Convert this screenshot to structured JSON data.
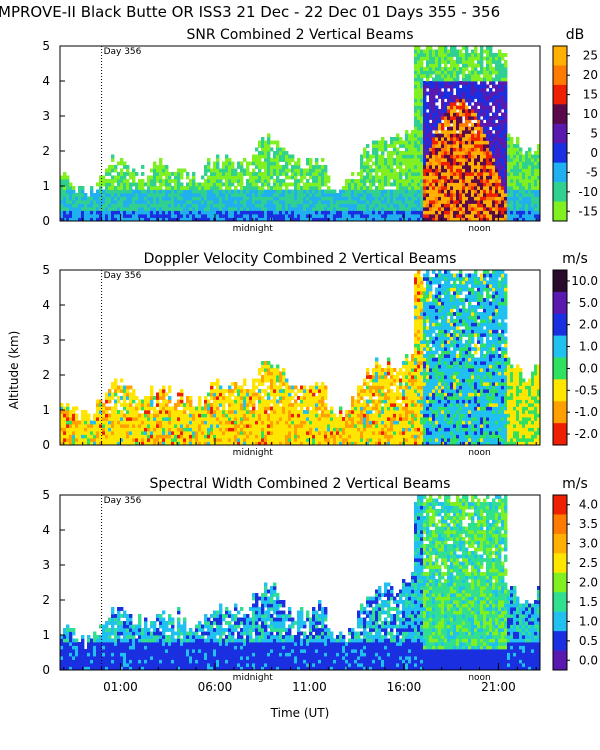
{
  "page": {
    "title": "MPROVE-II  Black Butte OR  ISS3  21 Dec - 22 Dec 01 Days 355 - 356",
    "ylabel": "Altitude (km)",
    "xlabel": "Time (UT)",
    "marker_label": "Day 356",
    "annotations": [
      "midnight",
      "noon"
    ]
  },
  "chart_data": [
    {
      "type": "heatmap",
      "title": "SNR Combined 2 Vertical Beams",
      "unit": "dB",
      "ylim": [
        0,
        5
      ],
      "yticks": [
        "0",
        "1",
        "2",
        "3",
        "4",
        "5"
      ],
      "xticks_hours": [
        1,
        6,
        11,
        16,
        21
      ],
      "colorbar": {
        "labels": [
          "25",
          "20",
          "15",
          "10",
          "5",
          "0",
          "-5",
          "-10",
          "-15"
        ],
        "colors": [
          "#ffb000",
          "#ff7a00",
          "#ee2000",
          "#5a0a4a",
          "#5a1ab0",
          "#1a30e0",
          "#20b0f0",
          "#30d090",
          "#80f020"
        ]
      }
    },
    {
      "type": "heatmap",
      "title": "Doppler Velocity Combined 2 Vertical Beams",
      "unit": "m/s",
      "ylim": [
        0,
        5
      ],
      "yticks": [
        "0",
        "1",
        "2",
        "3",
        "4",
        "5"
      ],
      "xticks_hours": [
        1,
        6,
        11,
        16,
        21
      ],
      "colorbar": {
        "labels": [
          "10.0",
          "5.0",
          "2.0",
          "1.0",
          "0.0",
          "-0.5",
          "-1.0",
          "-2.0"
        ],
        "colors": [
          "#2a0a2a",
          "#5a1ab0",
          "#1a30e0",
          "#20c0f0",
          "#30e060",
          "#ffe600",
          "#ffa000",
          "#ee2000"
        ]
      }
    },
    {
      "type": "heatmap",
      "title": "Spectral Width Combined 2 Vertical Beams",
      "unit": "m/s",
      "ylim": [
        0,
        5
      ],
      "yticks": [
        "0",
        "1",
        "2",
        "3",
        "4",
        "5"
      ],
      "xticks_hours": [
        1,
        6,
        11,
        16,
        21
      ],
      "colorbar": {
        "labels": [
          "4.0",
          "3.5",
          "3.0",
          "2.5",
          "2.0",
          "1.5",
          "1.0",
          "0.5",
          "0.0"
        ],
        "colors": [
          "#ee2000",
          "#ff7a00",
          "#ffb000",
          "#ffe600",
          "#80f020",
          "#30e090",
          "#20c0f0",
          "#1a30e0",
          "#5a1ab0"
        ]
      }
    }
  ],
  "xtick_labels": [
    "01:00",
    "06:00",
    "11:00",
    "16:00",
    "21:00"
  ]
}
